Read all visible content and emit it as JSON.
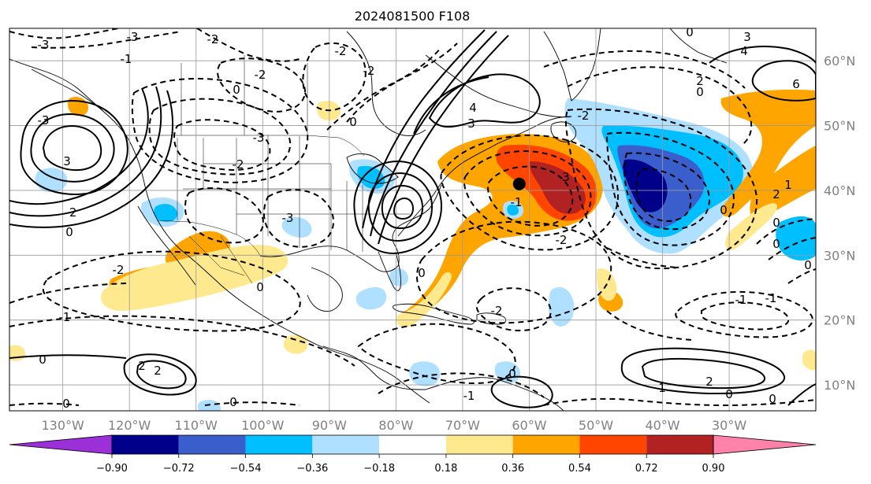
{
  "title": "2024081500 F108",
  "map": {
    "lon_range": [
      -138,
      -17
    ],
    "lat_range": [
      6,
      65
    ],
    "lon_ticks": [
      -130,
      -120,
      -110,
      -100,
      -90,
      -80,
      -70,
      -60,
      -50,
      -40,
      -30
    ],
    "lon_tick_labels": [
      "130°W",
      "120°W",
      "110°W",
      "100°W",
      "90°W",
      "80°W",
      "70°W",
      "60°W",
      "50°W",
      "40°W",
      "30°W"
    ],
    "lat_ticks": [
      10,
      20,
      30,
      40,
      50,
      60
    ],
    "lat_tick_labels": [
      "10°N",
      "20°N",
      "30°N",
      "40°N",
      "50°N",
      "60°N"
    ],
    "grid": true,
    "marker": {
      "lon": -61.5,
      "lat": 41,
      "label": "storm-center-marker"
    },
    "contour_labels": [
      "-3",
      "-2",
      "-1",
      "0",
      "1",
      "2",
      "3",
      "4",
      "6"
    ]
  },
  "colorbar": {
    "orientation": "horizontal",
    "extend": "both",
    "ticks": [
      -0.9,
      -0.72,
      -0.54,
      -0.36,
      -0.18,
      0.18,
      0.36,
      0.54,
      0.72,
      0.9
    ],
    "tick_labels": [
      "−0.90",
      "−0.72",
      "−0.54",
      "−0.36",
      "−0.18",
      "0.18",
      "0.36",
      "0.54",
      "0.72",
      "0.90"
    ],
    "colors": [
      "#9b30d9",
      "#00008b",
      "#3a5fcd",
      "#00bfff",
      "#b0e0ff",
      "#ffffff",
      "#ffe98f",
      "#ffa500",
      "#ff4500",
      "#b22222",
      "#ff82ab"
    ]
  }
}
